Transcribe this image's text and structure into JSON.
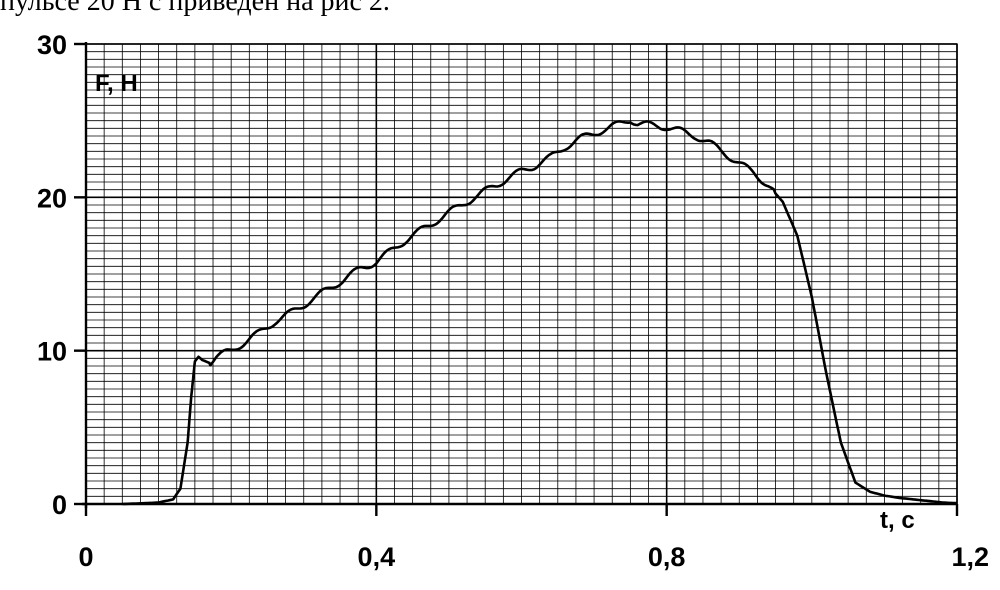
{
  "caption": "пульсе 20 Н с приведен на рис 2.",
  "chart_data": {
    "type": "line",
    "title": "",
    "xlabel": "t, c",
    "ylabel": "F, H",
    "xlim": [
      0,
      1.2
    ],
    "ylim": [
      0,
      30
    ],
    "x_ticks": [
      {
        "value": 0,
        "label": "0"
      },
      {
        "value": 0.4,
        "label": "0,4"
      },
      {
        "value": 0.8,
        "label": "0,8"
      },
      {
        "value": 1.2,
        "label": "1,2"
      }
    ],
    "y_ticks": [
      {
        "value": 0,
        "label": "0"
      },
      {
        "value": 10,
        "label": "10"
      },
      {
        "value": 20,
        "label": "20"
      },
      {
        "value": 30,
        "label": "30"
      }
    ],
    "grid": true,
    "line_color": "#000000",
    "series": [
      {
        "x": [
          0.05,
          0.08,
          0.1,
          0.12,
          0.13,
          0.14,
          0.145,
          0.15,
          0.155,
          0.16,
          0.17,
          0.18,
          0.2,
          0.22,
          0.24,
          0.26,
          0.28,
          0.3,
          0.32,
          0.34,
          0.36,
          0.38,
          0.4,
          0.42,
          0.44,
          0.46,
          0.48,
          0.5,
          0.52,
          0.54,
          0.56,
          0.58,
          0.6,
          0.62,
          0.64,
          0.66,
          0.68,
          0.7,
          0.72,
          0.74,
          0.75,
          0.76,
          0.78,
          0.8,
          0.82,
          0.84,
          0.86,
          0.88,
          0.9,
          0.92,
          0.94,
          0.96,
          0.98,
          1.0,
          1.02,
          1.04,
          1.06,
          1.08,
          1.1,
          1.12,
          1.14,
          1.16,
          1.18,
          1.2
        ],
        "y": [
          0,
          0.05,
          0.1,
          0.3,
          1.0,
          4.0,
          7.0,
          9.3,
          9.6,
          9.4,
          9.2,
          9.6,
          10.0,
          10.6,
          11.2,
          11.9,
          12.4,
          13.0,
          13.6,
          14.2,
          14.8,
          15.4,
          15.8,
          16.5,
          17.2,
          17.8,
          18.4,
          19.0,
          19.6,
          20.1,
          20.7,
          21.2,
          21.7,
          22.1,
          22.6,
          23.3,
          23.8,
          24.2,
          24.5,
          24.9,
          25.1,
          24.8,
          24.7,
          24.6,
          24.3,
          24.0,
          23.5,
          22.9,
          22.2,
          21.6,
          20.8,
          19.7,
          17.5,
          13.5,
          8.5,
          4.0,
          1.4,
          0.8,
          0.55,
          0.4,
          0.3,
          0.2,
          0.1,
          0.05
        ]
      }
    ]
  }
}
